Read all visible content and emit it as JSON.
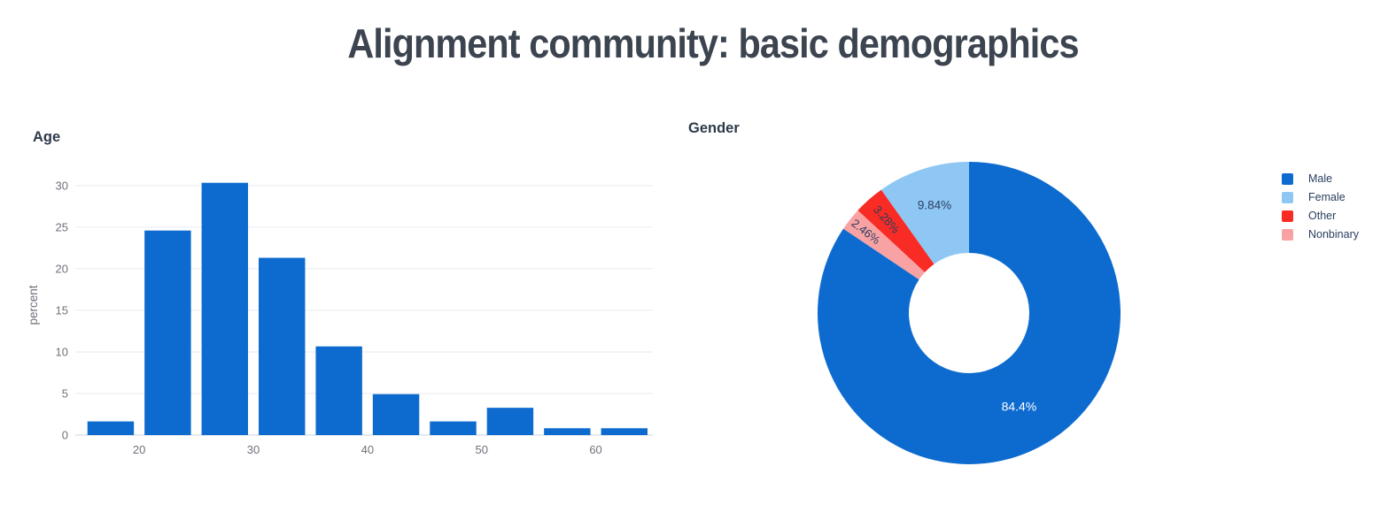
{
  "page": {
    "title": "Alignment community: basic demographics"
  },
  "colors": {
    "accent_blue": "#0d6bd0",
    "light_blue": "#8ec7f4",
    "red": "#f82b25",
    "pink": "#f9a2a4",
    "page_title_text": "#3c4450",
    "chart_title_text": "#2d3a4a",
    "tick_text": "#6e727b",
    "grid": "#e8eaee",
    "axis_line": "#ccd0d7",
    "label_dark": "#2a3f5f",
    "label_light": "#ffffff",
    "background": "#ffffff"
  },
  "chart_data": [
    {
      "type": "bar",
      "title": "Age",
      "xlabel": "",
      "ylabel": "percent",
      "bin_edges": [
        15,
        20,
        25,
        30,
        35,
        40,
        45,
        50,
        55,
        60,
        65
      ],
      "values": [
        1.64,
        24.59,
        30.33,
        21.31,
        10.66,
        4.92,
        1.64,
        3.28,
        0.82,
        0.82
      ],
      "xticks": [
        20,
        30,
        40,
        50,
        60
      ],
      "yticks": [
        0,
        5,
        10,
        15,
        20,
        25,
        30
      ],
      "xlim": [
        14.4,
        65
      ],
      "ylim": [
        0,
        32
      ],
      "grid": true,
      "legend_position": "none",
      "bar_color": "#0d6bd0"
    },
    {
      "type": "pie",
      "title": "Gender",
      "hole": 0.4,
      "labels": [
        "Male",
        "Female",
        "Other",
        "Nonbinary"
      ],
      "values": [
        84.4,
        9.84,
        3.28,
        2.46
      ],
      "display_labels": [
        "84.4%",
        "9.84%",
        "3.28%",
        "2.46%"
      ],
      "colors": [
        "#0d6bd0",
        "#8ec7f4",
        "#f82b25",
        "#f9a2a4"
      ],
      "clockwise_order": [
        "Male",
        "Nonbinary",
        "Other",
        "Female"
      ],
      "legend_position": "right"
    }
  ]
}
